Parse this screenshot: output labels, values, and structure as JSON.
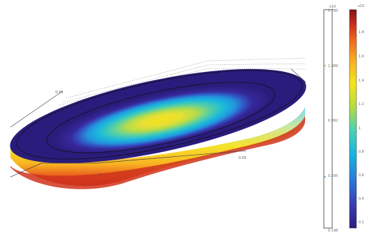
{
  "surface_axis_labels": {
    "a": "0.05",
    "b": "0.05",
    "c": "0"
  },
  "colorbar_left": {
    "exponent": "x10",
    "ticks": [
      "1.785",
      "1.389",
      "0.992",
      "0.595",
      "0.198"
    ],
    "line_color": "#333333",
    "marker_colors": [
      "#d89a3a",
      "#4a9fd0"
    ]
  },
  "colorbar_right": {
    "exponent": "x10",
    "ticks": [
      "1.8",
      "1.6",
      "1.4",
      "1.2",
      "1",
      "0.8",
      "0.6",
      "0.4",
      "0.2"
    ],
    "colormap": [
      "#2b1d7a",
      "#3a3bb0",
      "#2a78d8",
      "#16b7e0",
      "#4cd2b0",
      "#b9dc3c",
      "#f6e41c",
      "#f8b322",
      "#ee6a1e",
      "#c62a1e",
      "#7e1414"
    ]
  }
}
